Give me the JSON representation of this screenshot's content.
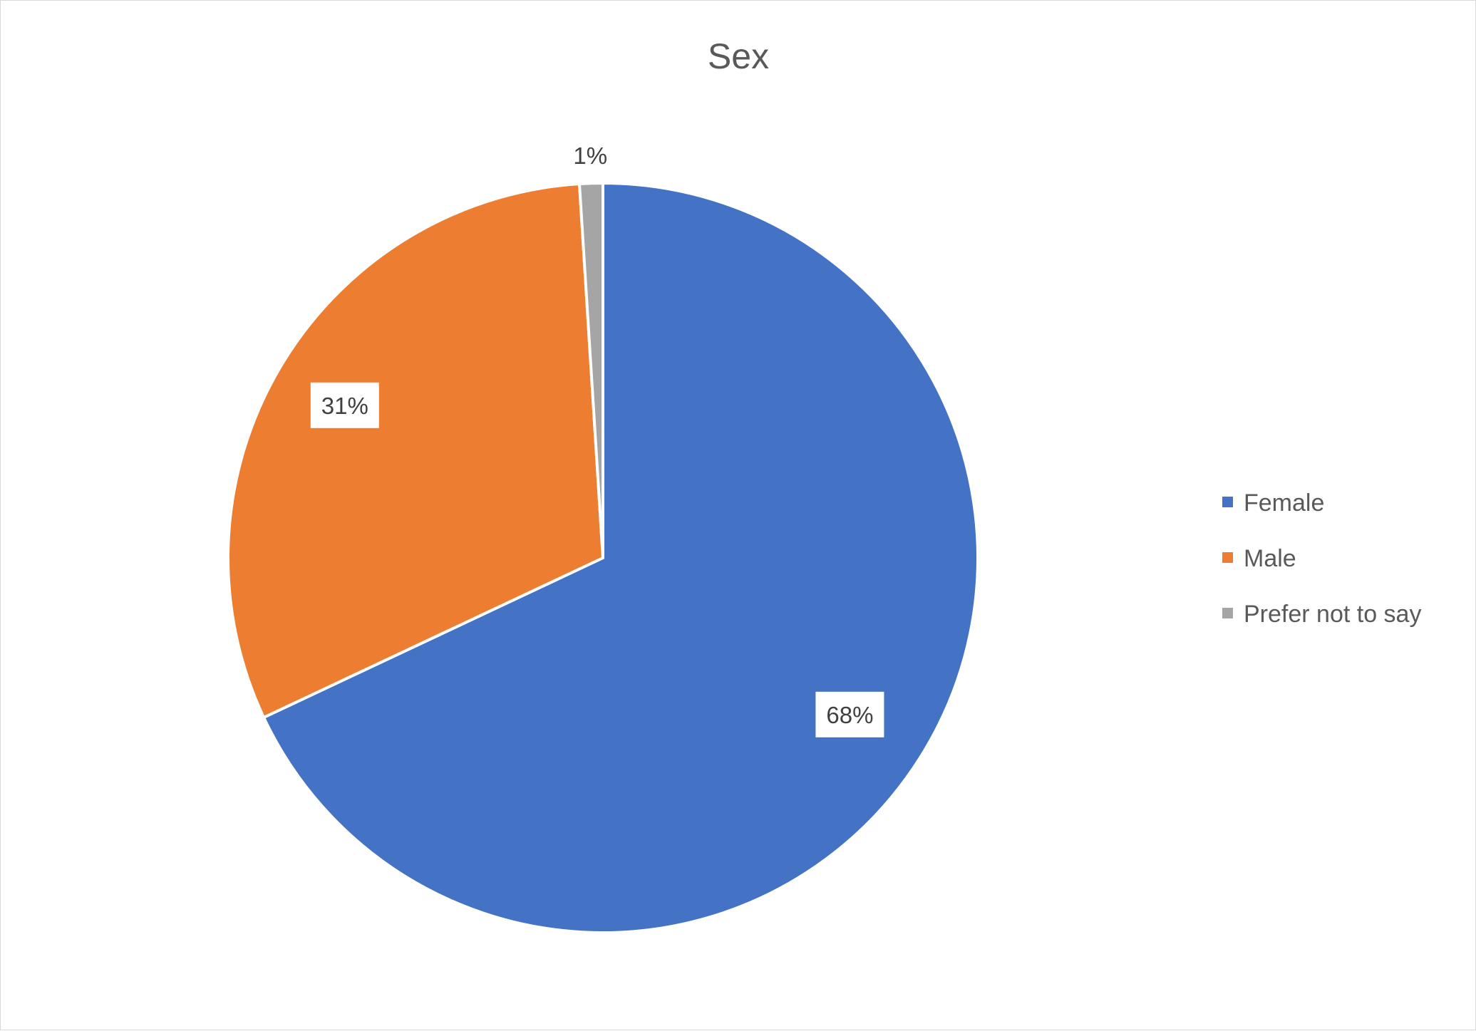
{
  "chart_data": {
    "type": "pie",
    "title": "Sex",
    "categories": [
      "Female",
      "Male",
      "Prefer not to say"
    ],
    "values": [
      68,
      31,
      1
    ],
    "labels": [
      "68%",
      "31%",
      "1%"
    ],
    "colors": [
      "#4472C4",
      "#ED7D31",
      "#A5A5A5"
    ],
    "legend_position": "right"
  }
}
